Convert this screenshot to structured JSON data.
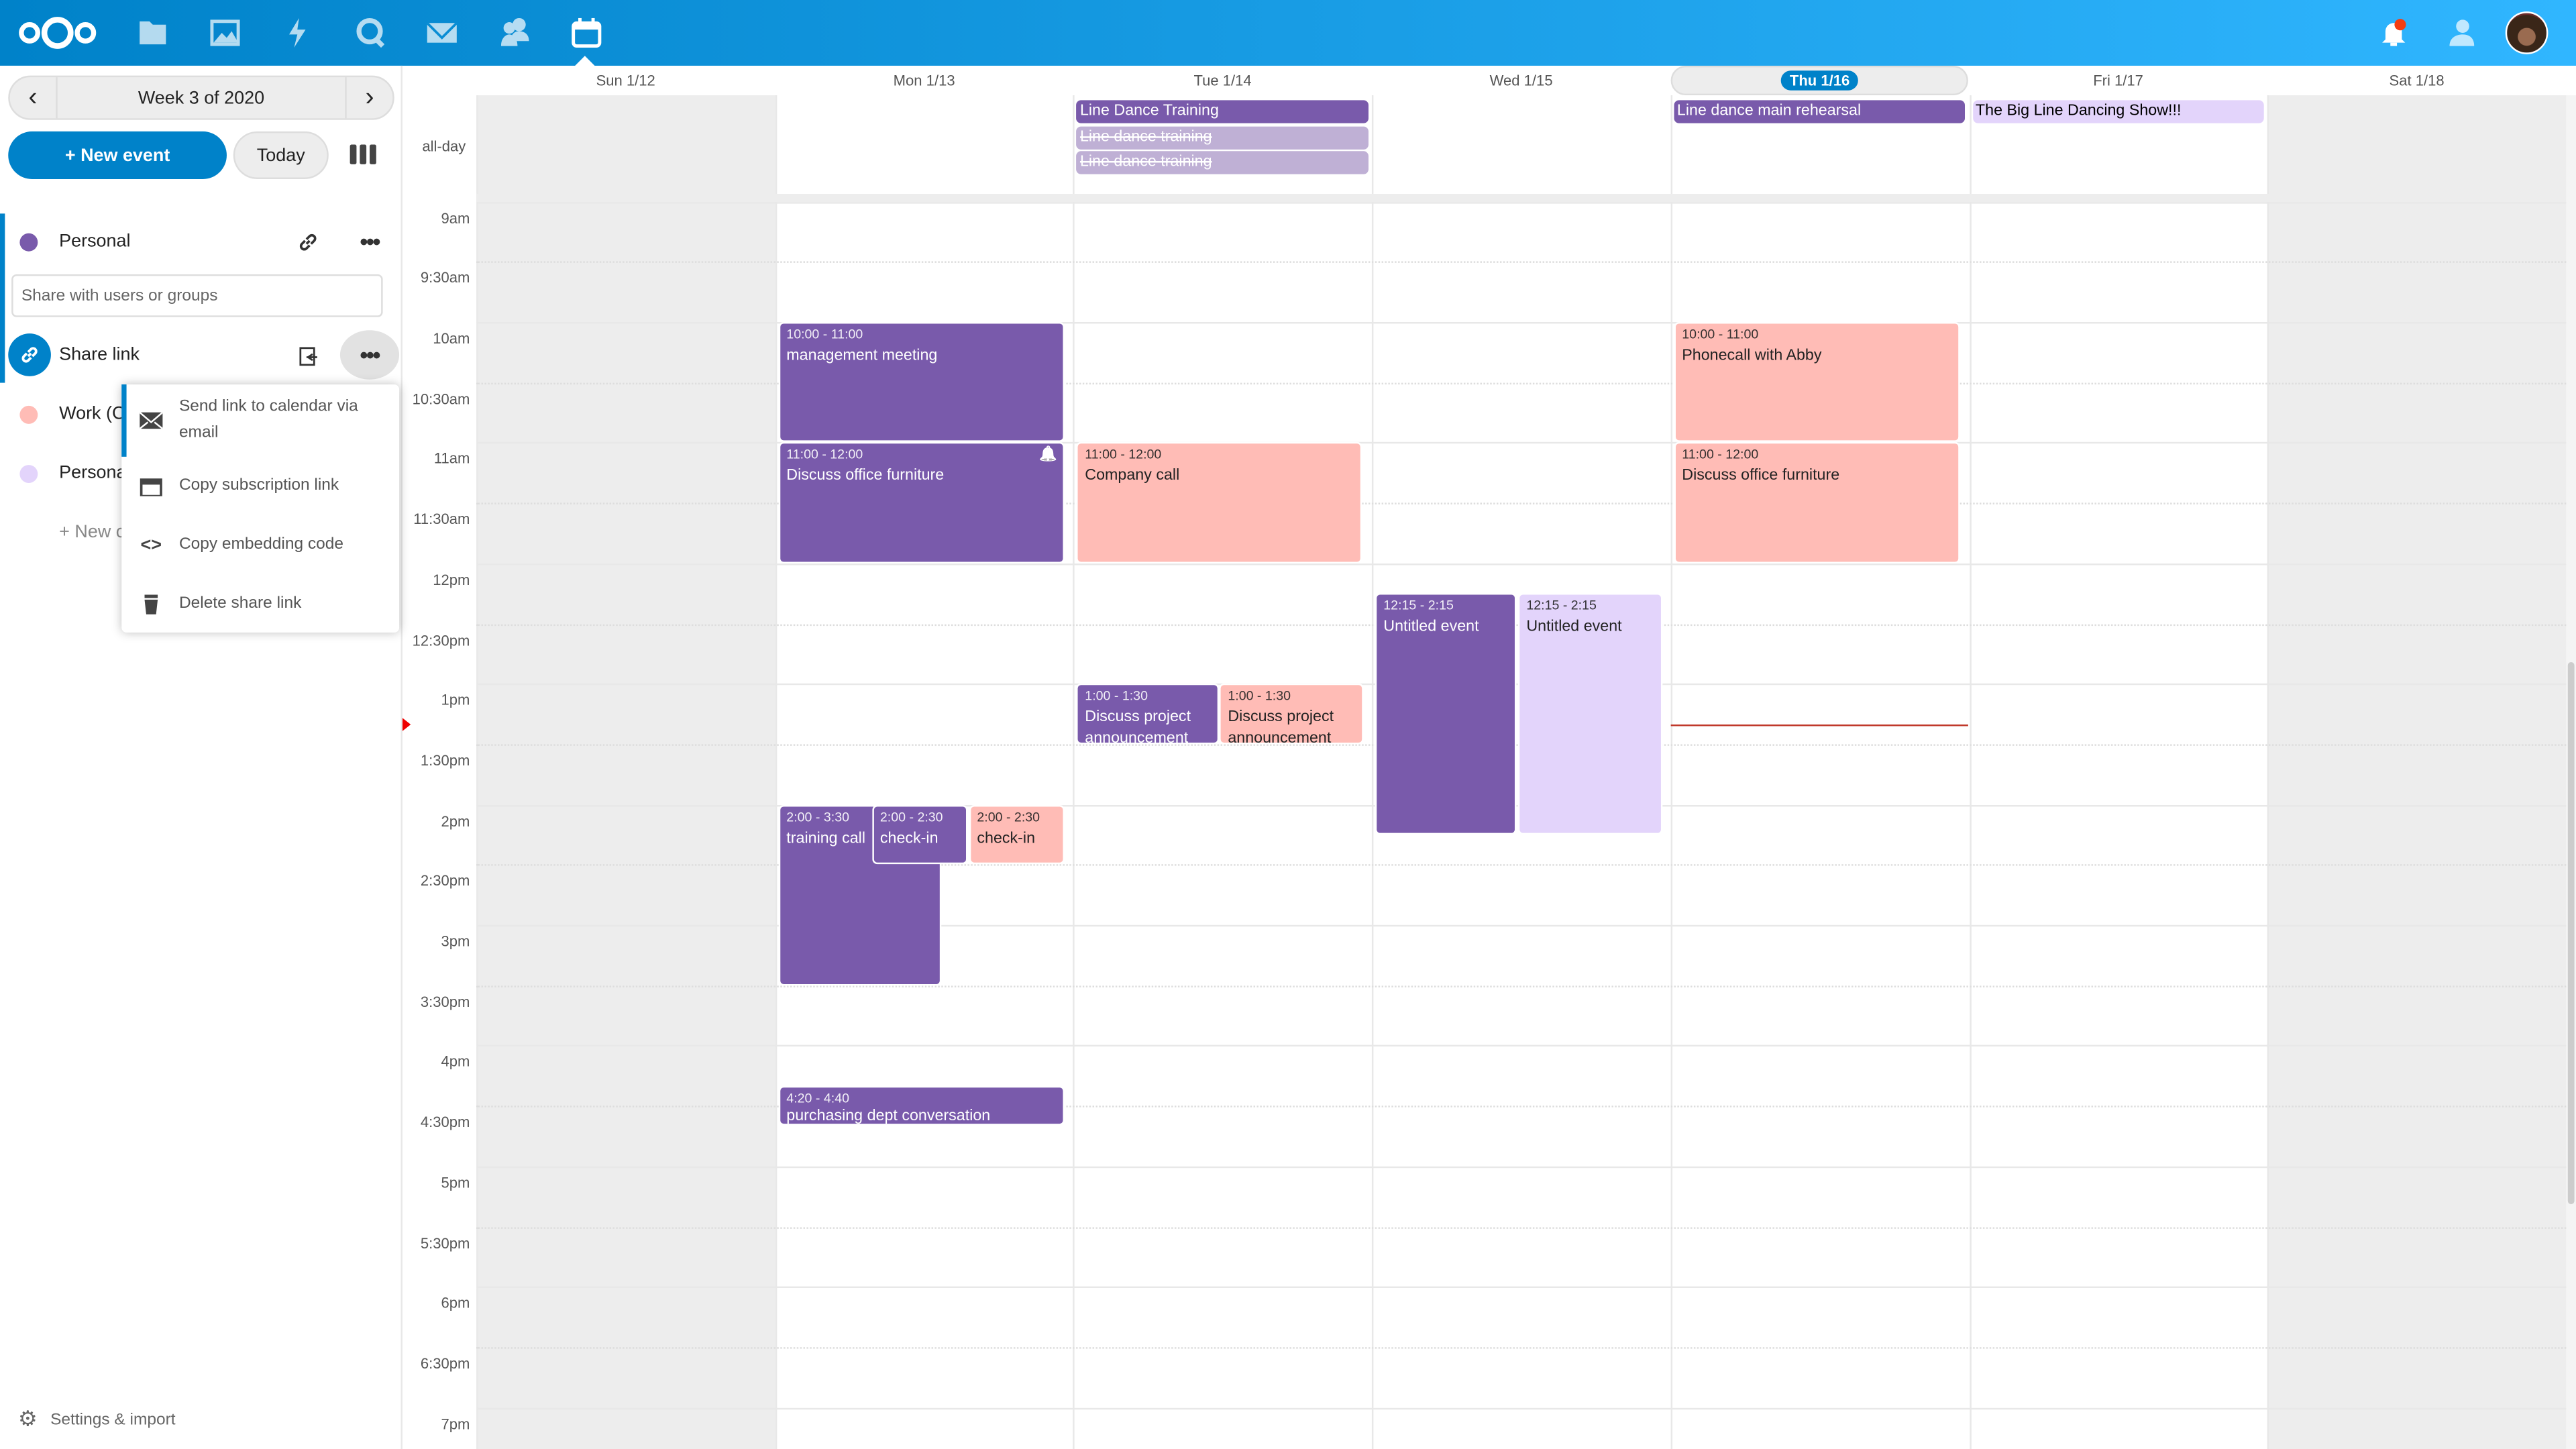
{
  "colors": {
    "brand": "#0082c9",
    "purple": "#795aab",
    "pink": "#ffbcb6",
    "lavender": "#e3d4fb",
    "faded": "#bfb0d5",
    "now": "#e00000"
  },
  "header": {
    "apps": [
      "logo-icon",
      "files-icon",
      "photos-icon",
      "activity-icon",
      "talk-icon",
      "mail-icon",
      "contacts-icon",
      "calendar-icon"
    ],
    "right": [
      "notifications-icon",
      "contacts-menu-icon",
      "avatar"
    ]
  },
  "sidebar": {
    "week_label": "Week 3 of 2020",
    "new_event": "+ New event",
    "today": "Today",
    "calendars": [
      {
        "name": "Personal",
        "color": "#795aab"
      },
      {
        "name": "Work (C",
        "color": "#ffbcb6"
      },
      {
        "name": "Persona",
        "color": "#e3d4fb"
      }
    ],
    "share_placeholder": "Share with users or groups",
    "share_link": "Share link",
    "new_calendar": "+ New c",
    "menu": [
      {
        "icon": "mail-icon",
        "label": "Send link to calendar via email"
      },
      {
        "icon": "calendar-icon",
        "label": "Copy subscription link"
      },
      {
        "icon": "code-icon",
        "label": "Copy embedding code"
      },
      {
        "icon": "trash-icon",
        "label": "Delete share link"
      }
    ],
    "settings": "Settings & import"
  },
  "calendar": {
    "days": [
      "Sun 1/12",
      "Mon 1/13",
      "Tue 1/14",
      "Wed 1/15",
      "Thu 1/16",
      "Fri 1/17",
      "Sat 1/18"
    ],
    "today_index": 4,
    "allday_label": "all-day",
    "hours": [
      "9am",
      "9:30am",
      "10am",
      "10:30am",
      "11am",
      "11:30am",
      "12pm",
      "12:30pm",
      "1pm",
      "1:30pm",
      "2pm",
      "2:30pm",
      "3pm",
      "3:30pm",
      "4pm",
      "4:30pm",
      "5pm",
      "5:30pm",
      "6pm",
      "6:30pm",
      "7pm"
    ],
    "now": "13:20",
    "allday_events": [
      {
        "day": 2,
        "title": "Line Dance Training",
        "color": "purple"
      },
      {
        "day": 2,
        "title": "Line dance training",
        "color": "faded",
        "strike": true
      },
      {
        "day": 2,
        "title": "Line dance training",
        "color": "faded",
        "strike": true
      },
      {
        "day": 4,
        "title": "Line dance main rehearsal",
        "color": "purple"
      },
      {
        "day": 5,
        "title": "The Big Line Dancing Show!!!",
        "color": "lavender"
      }
    ],
    "events": [
      {
        "day": 1,
        "start": "10:00",
        "end": "11:00",
        "time": "10:00 - 11:00",
        "title": "management meeting",
        "color": "purple"
      },
      {
        "day": 1,
        "start": "11:00",
        "end": "12:00",
        "time": "11:00 - 12:00",
        "title": "Discuss office furniture",
        "color": "purple",
        "alarm": true
      },
      {
        "day": 1,
        "start": "14:00",
        "end": "15:30",
        "time": "2:00 - 3:30",
        "title": "training call",
        "color": "purple"
      },
      {
        "day": 1,
        "start": "14:00",
        "end": "14:30",
        "time": "2:00 - 2:30",
        "title": "check-in",
        "color": "purple"
      },
      {
        "day": 1,
        "start": "14:00",
        "end": "14:30",
        "time": "2:00 - 2:30",
        "title": "check-in",
        "color": "pink"
      },
      {
        "day": 1,
        "start": "16:20",
        "end": "16:40",
        "time": "4:20 - 4:40",
        "title": "purchasing dept conversation",
        "color": "purple"
      },
      {
        "day": 2,
        "start": "11:00",
        "end": "12:00",
        "time": "11:00 - 12:00",
        "title": "Company call",
        "color": "pink"
      },
      {
        "day": 2,
        "start": "13:00",
        "end": "13:30",
        "time": "1:00 - 1:30",
        "title": "Discuss project announcement",
        "color": "purple"
      },
      {
        "day": 2,
        "start": "13:00",
        "end": "13:30",
        "time": "1:00 - 1:30",
        "title": "Discuss project announcement",
        "color": "pink"
      },
      {
        "day": 3,
        "start": "12:15",
        "end": "14:15",
        "time": "12:15 - 2:15",
        "title": "Untitled event",
        "color": "purple"
      },
      {
        "day": 3,
        "start": "12:15",
        "end": "14:15",
        "time": "12:15 - 2:15",
        "title": "Untitled event",
        "color": "lavender"
      },
      {
        "day": 4,
        "start": "10:00",
        "end": "11:00",
        "time": "10:00 - 11:00",
        "title": "Phonecall with Abby",
        "color": "pink"
      },
      {
        "day": 4,
        "start": "11:00",
        "end": "12:00",
        "time": "11:00 - 12:00",
        "title": "Discuss office furniture",
        "color": "pink"
      }
    ]
  }
}
